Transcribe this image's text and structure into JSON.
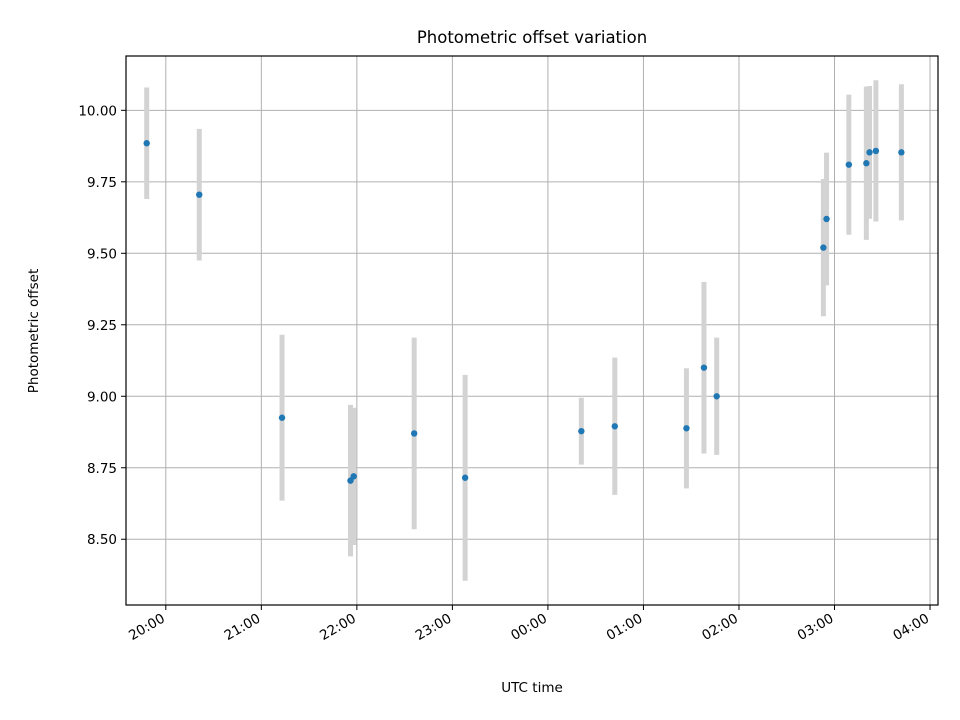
{
  "chart_data": {
    "type": "scatter",
    "title": "Photometric offset variation",
    "xlabel": "UTC time",
    "ylabel": "Photometric offset",
    "x_axis": "time",
    "x_ticks": [
      "20:00",
      "21:00",
      "22:00",
      "23:00",
      "00:00",
      "01:00",
      "02:00",
      "03:00",
      "04:00"
    ],
    "xlim": [
      "19:35",
      "04:05"
    ],
    "ylim": [
      8.27,
      10.19
    ],
    "y_ticks": [
      "8.50",
      "8.75",
      "9.00",
      "9.25",
      "9.50",
      "9.75",
      "10.00"
    ],
    "grid": true,
    "point_color": "#1f77b4",
    "errorbar_color": "#d3d3d3",
    "points": [
      {
        "t": "19:48",
        "y": 9.885,
        "err": 0.195
      },
      {
        "t": "20:21",
        "y": 9.705,
        "err": 0.23
      },
      {
        "t": "21:13",
        "y": 8.925,
        "err": 0.29
      },
      {
        "t": "21:56",
        "y": 8.705,
        "err": 0.265
      },
      {
        "t": "21:58",
        "y": 8.72,
        "err": 0.24
      },
      {
        "t": "22:36",
        "y": 8.87,
        "err": 0.335
      },
      {
        "t": "23:08",
        "y": 8.715,
        "err": 0.36
      },
      {
        "t": "00:21",
        "y": 8.878,
        "err": 0.117
      },
      {
        "t": "00:42",
        "y": 8.895,
        "err": 0.24
      },
      {
        "t": "01:27",
        "y": 8.888,
        "err": 0.21
      },
      {
        "t": "01:38",
        "y": 9.1,
        "err": 0.3
      },
      {
        "t": "01:46",
        "y": 9.0,
        "err": 0.205
      },
      {
        "t": "02:53",
        "y": 9.52,
        "err": 0.24
      },
      {
        "t": "02:55",
        "y": 9.62,
        "err": 0.232
      },
      {
        "t": "03:09",
        "y": 9.81,
        "err": 0.245
      },
      {
        "t": "03:20",
        "y": 9.815,
        "err": 0.268
      },
      {
        "t": "03:22",
        "y": 9.853,
        "err": 0.232
      },
      {
        "t": "03:26",
        "y": 9.858,
        "err": 0.247
      },
      {
        "t": "03:42",
        "y": 9.853,
        "err": 0.238
      }
    ]
  }
}
